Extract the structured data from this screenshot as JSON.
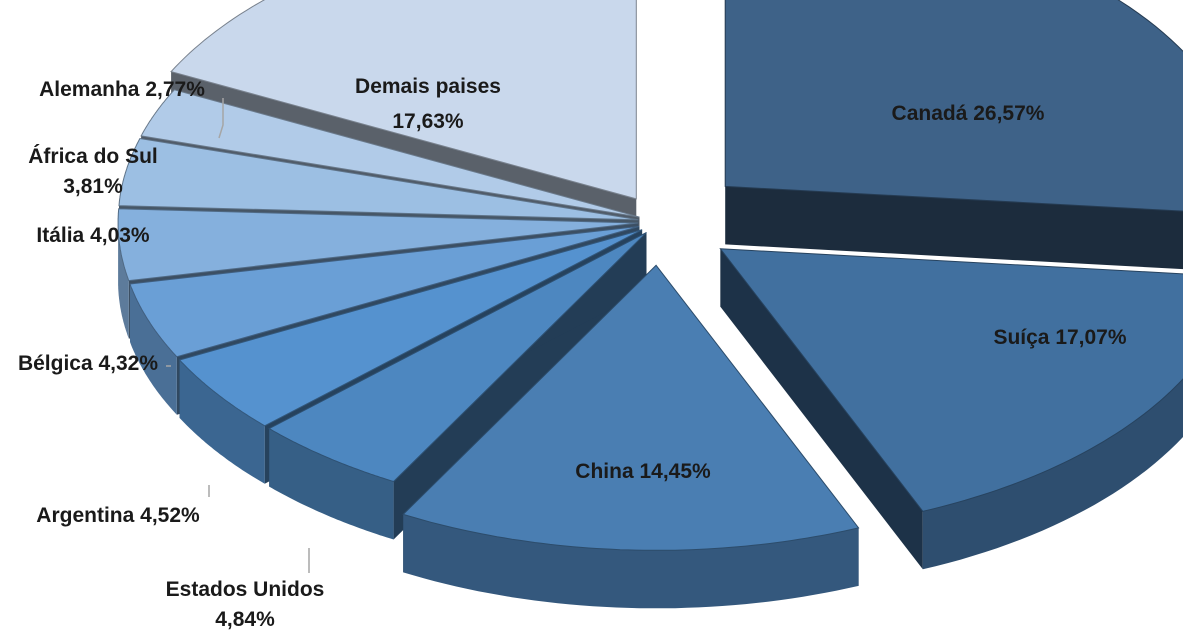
{
  "chart_data": {
    "type": "pie",
    "variant": "3d-exploded",
    "title": "",
    "legend": "none",
    "data_labels": "category-and-percent",
    "slices": [
      {
        "name": "Canadá",
        "value": 26.57,
        "label": "Canadá 26,57%",
        "color": "#3e6288"
      },
      {
        "name": "Suíça",
        "value": 17.07,
        "label": "Suíça 17,07%",
        "color": "#41709f"
      },
      {
        "name": "China",
        "value": 14.45,
        "label": "China 14,45%",
        "color": "#4a7eb2"
      },
      {
        "name": "Estados Unidos",
        "value": 4.84,
        "label_lines": [
          "Estados Unidos",
          "4,84%"
        ],
        "color": "#4d87c0"
      },
      {
        "name": "Argentina",
        "value": 4.52,
        "label": "Argentina 4,52%",
        "color": "#5592cf"
      },
      {
        "name": "Bélgica",
        "value": 4.32,
        "label": "Bélgica 4,32%",
        "color": "#6a9fd6"
      },
      {
        "name": "Itália",
        "value": 4.03,
        "label": "Itália 4,03%",
        "color": "#85b0dd"
      },
      {
        "name": "África do Sul",
        "value": 3.81,
        "label_lines": [
          "África do Sul",
          "3,81%"
        ],
        "color": "#9cbfe3"
      },
      {
        "name": "Alemanha",
        "value": 2.77,
        "label": "Alemanha 2,77%",
        "color": "#b1cbe8"
      },
      {
        "name": "Demais paises",
        "value": 17.63,
        "label_lines": [
          "Demais paises",
          "17,63%"
        ],
        "color": "#c9d8ec"
      }
    ]
  }
}
